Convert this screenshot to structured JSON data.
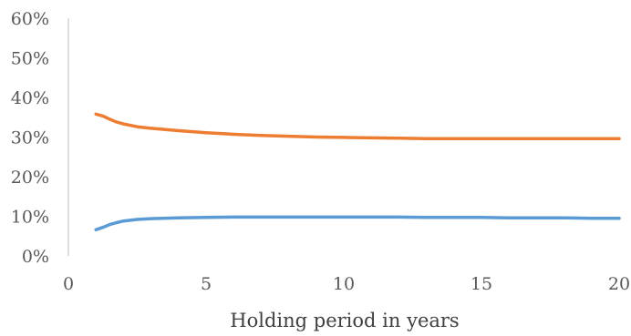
{
  "chart_data": {
    "type": "line",
    "title": "",
    "xlabel": "Holding period in years",
    "ylabel": "",
    "xlim": [
      0,
      20
    ],
    "ylim": [
      0,
      60
    ],
    "x_ticks": [
      0,
      5,
      10,
      15,
      20
    ],
    "y_ticks": [
      0,
      10,
      20,
      30,
      40,
      50,
      60
    ],
    "y_tick_suffix": "%",
    "grid": false,
    "legend": "none",
    "series": [
      {
        "color": "#ed7d31",
        "x": [
          1,
          1.25,
          1.5,
          1.75,
          2,
          2.5,
          3,
          4,
          5,
          6,
          7,
          8,
          9,
          10,
          11,
          12,
          13,
          14,
          15,
          16,
          17,
          18,
          19,
          20
        ],
        "values": [
          35.8,
          35.3,
          34.5,
          33.8,
          33.3,
          32.6,
          32.2,
          31.6,
          31.1,
          30.7,
          30.4,
          30.2,
          30.0,
          29.9,
          29.8,
          29.7,
          29.6,
          29.6,
          29.6,
          29.6,
          29.6,
          29.6,
          29.6,
          29.6
        ]
      },
      {
        "color": "#5b9bd5",
        "x": [
          1,
          1.25,
          1.5,
          1.75,
          2,
          2.5,
          3,
          4,
          5,
          6,
          7,
          8,
          9,
          10,
          11,
          12,
          13,
          14,
          15,
          16,
          17,
          18,
          19,
          20
        ],
        "values": [
          6.6,
          7.2,
          7.9,
          8.4,
          8.8,
          9.2,
          9.4,
          9.6,
          9.7,
          9.8,
          9.8,
          9.8,
          9.8,
          9.8,
          9.8,
          9.8,
          9.7,
          9.7,
          9.7,
          9.6,
          9.6,
          9.6,
          9.5,
          9.5
        ]
      }
    ]
  }
}
